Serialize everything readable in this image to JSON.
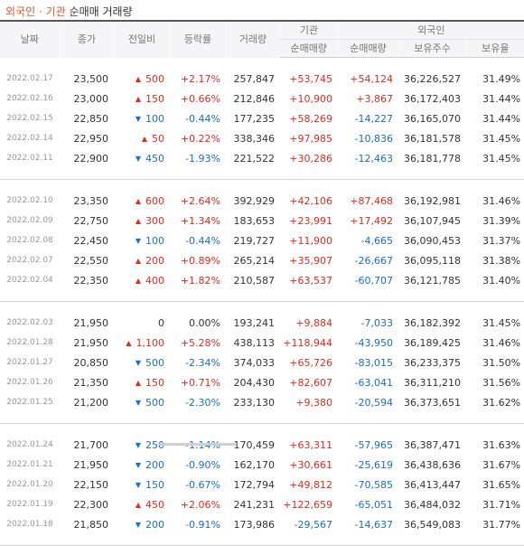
{
  "header": {
    "title_part1": "외국인",
    "title_sep": "·",
    "title_part2": "기관",
    "title_rest": "순매매 거래량"
  },
  "columns": {
    "date": "날짜",
    "close": "종가",
    "change": "전일비",
    "rate": "등락률",
    "volume": "거래량",
    "inst_group": "기관",
    "inst_net": "순매매량",
    "foreign_group": "외국인",
    "foreign_net": "순매매량",
    "foreign_shares": "보유주수",
    "foreign_ratio": "보유율"
  },
  "colors": {
    "up": "#e52a1d",
    "down": "#1a6ccd"
  },
  "icons": {
    "up": "up-triangle-icon",
    "down": "down-triangle-icon"
  },
  "groups": [
    {
      "rows": [
        {
          "date": "2022.02.17",
          "close": "23,500",
          "dir": "up",
          "change": "500",
          "rate": "+2.17%",
          "volume": "257,847",
          "inst_net": "+53,745",
          "foreign_net": "+54,124",
          "foreign_shares": "36,226,527",
          "foreign_ratio": "31.49%"
        },
        {
          "date": "2022.02.16",
          "close": "23,000",
          "dir": "up",
          "change": "150",
          "rate": "+0.66%",
          "volume": "212,846",
          "inst_net": "+10,900",
          "foreign_net": "+3,867",
          "foreign_shares": "36,172,403",
          "foreign_ratio": "31.44%"
        },
        {
          "date": "2022.02.15",
          "close": "22,850",
          "dir": "down",
          "change": "100",
          "rate": "-0.44%",
          "volume": "177,235",
          "inst_net": "+58,269",
          "foreign_net": "-14,227",
          "foreign_shares": "36,165,070",
          "foreign_ratio": "31.44%"
        },
        {
          "date": "2022.02.14",
          "close": "22,950",
          "dir": "up",
          "change": "50",
          "rate": "+0.22%",
          "volume": "338,346",
          "inst_net": "+97,985",
          "foreign_net": "-10,836",
          "foreign_shares": "36,181,578",
          "foreign_ratio": "31.45%"
        },
        {
          "date": "2022.02.11",
          "close": "22,900",
          "dir": "down",
          "change": "450",
          "rate": "-1.93%",
          "volume": "221,522",
          "inst_net": "+30,286",
          "foreign_net": "-12,463",
          "foreign_shares": "36,181,778",
          "foreign_ratio": "31.45%"
        }
      ]
    },
    {
      "rows": [
        {
          "date": "2022.02.10",
          "close": "23,350",
          "dir": "up",
          "change": "600",
          "rate": "+2.64%",
          "volume": "392,929",
          "inst_net": "+42,106",
          "foreign_net": "+87,468",
          "foreign_shares": "36,192,981",
          "foreign_ratio": "31.46%"
        },
        {
          "date": "2022.02.09",
          "close": "22,750",
          "dir": "up",
          "change": "300",
          "rate": "+1.34%",
          "volume": "183,653",
          "inst_net": "+23,991",
          "foreign_net": "+17,492",
          "foreign_shares": "36,107,945",
          "foreign_ratio": "31.39%"
        },
        {
          "date": "2022.02.08",
          "close": "22,450",
          "dir": "down",
          "change": "100",
          "rate": "-0.44%",
          "volume": "219,727",
          "inst_net": "+11,900",
          "foreign_net": "-4,665",
          "foreign_shares": "36,090,453",
          "foreign_ratio": "31.37%"
        },
        {
          "date": "2022.02.07",
          "close": "22,550",
          "dir": "up",
          "change": "200",
          "rate": "+0.89%",
          "volume": "265,214",
          "inst_net": "+35,907",
          "foreign_net": "-26,667",
          "foreign_shares": "36,095,118",
          "foreign_ratio": "31.38%"
        },
        {
          "date": "2022.02.04",
          "close": "22,350",
          "dir": "up",
          "change": "400",
          "rate": "+1.82%",
          "volume": "210,587",
          "inst_net": "+63,537",
          "foreign_net": "-60,707",
          "foreign_shares": "36,121,785",
          "foreign_ratio": "31.40%"
        }
      ]
    },
    {
      "rows": [
        {
          "date": "2022.02.03",
          "close": "21,950",
          "dir": "none",
          "change": "0",
          "rate": "0.00%",
          "volume": "193,241",
          "inst_net": "+9,884",
          "foreign_net": "-7,033",
          "foreign_shares": "36,182,392",
          "foreign_ratio": "31.45%"
        },
        {
          "date": "2022.01.28",
          "close": "21,950",
          "dir": "up",
          "change": "1,100",
          "rate": "+5.28%",
          "volume": "438,113",
          "inst_net": "+118,944",
          "foreign_net": "-43,950",
          "foreign_shares": "36,189,425",
          "foreign_ratio": "31.46%"
        },
        {
          "date": "2022.01.27",
          "close": "20,850",
          "dir": "down",
          "change": "500",
          "rate": "-2.34%",
          "volume": "374,033",
          "inst_net": "+65,726",
          "foreign_net": "-83,015",
          "foreign_shares": "36,233,375",
          "foreign_ratio": "31.50%"
        },
        {
          "date": "2022.01.26",
          "close": "21,350",
          "dir": "up",
          "change": "150",
          "rate": "+0.71%",
          "volume": "204,430",
          "inst_net": "+82,607",
          "foreign_net": "-63,041",
          "foreign_shares": "36,311,210",
          "foreign_ratio": "31.56%"
        },
        {
          "date": "2022.01.25",
          "close": "21,200",
          "dir": "down",
          "change": "500",
          "rate": "-2.30%",
          "volume": "233,130",
          "inst_net": "+9,380",
          "foreign_net": "-20,594",
          "foreign_shares": "36,373,651",
          "foreign_ratio": "31.62%"
        }
      ]
    },
    {
      "rows": [
        {
          "date": "2022.01.24",
          "close": "21,700",
          "dir": "down",
          "change": "250",
          "rate": "-1.14%",
          "volume": "170,459",
          "inst_net": "+63,311",
          "foreign_net": "-57,965",
          "foreign_shares": "36,387,471",
          "foreign_ratio": "31.63%"
        },
        {
          "date": "2022.01.21",
          "close": "21,950",
          "dir": "down",
          "change": "200",
          "rate": "-0.90%",
          "volume": "162,170",
          "inst_net": "+30,661",
          "foreign_net": "-25,619",
          "foreign_shares": "36,438,636",
          "foreign_ratio": "31.67%"
        },
        {
          "date": "2022.01.20",
          "close": "22,150",
          "dir": "down",
          "change": "150",
          "rate": "-0.67%",
          "volume": "172,794",
          "inst_net": "+49,812",
          "foreign_net": "-70,585",
          "foreign_shares": "36,413,447",
          "foreign_ratio": "31.65%"
        },
        {
          "date": "2022.01.19",
          "close": "22,300",
          "dir": "up",
          "change": "450",
          "rate": "+2.06%",
          "volume": "241,231",
          "inst_net": "+122,659",
          "foreign_net": "-65,051",
          "foreign_shares": "36,484,032",
          "foreign_ratio": "31.71%"
        },
        {
          "date": "2022.01.18",
          "close": "21,850",
          "dir": "down",
          "change": "200",
          "rate": "-0.91%",
          "volume": "173,986",
          "inst_net": "-29,567",
          "foreign_net": "-14,637",
          "foreign_shares": "36,549,083",
          "foreign_ratio": "31.77%"
        }
      ]
    }
  ]
}
